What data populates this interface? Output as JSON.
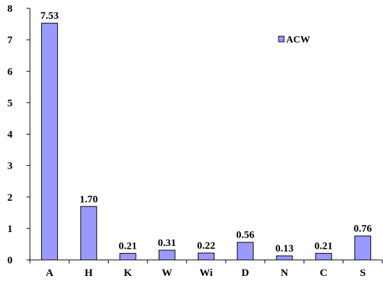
{
  "chart_data": {
    "type": "bar",
    "title": "",
    "xlabel": "",
    "ylabel": "",
    "categories": [
      "A",
      "H",
      "K",
      "W",
      "Wi",
      "D",
      "N",
      "C",
      "S"
    ],
    "series": [
      {
        "name": "ACW",
        "values": [
          7.53,
          1.7,
          0.21,
          0.31,
          0.22,
          0.56,
          0.13,
          0.21,
          0.76
        ],
        "value_labels": [
          "7.53",
          "1.70",
          "0.21",
          "0.31",
          "0.22",
          "0.56",
          "0.13",
          "0.21",
          "0.76"
        ],
        "color": "#9999ff"
      }
    ],
    "ylim": [
      0,
      8
    ],
    "yticks": [
      0,
      1,
      2,
      3,
      4,
      5,
      6,
      7,
      8
    ],
    "ytick_labels": [
      "0",
      "1",
      "2",
      "3",
      "4",
      "5",
      "6",
      "7",
      "8"
    ],
    "grid": false,
    "legend": "top-right"
  }
}
